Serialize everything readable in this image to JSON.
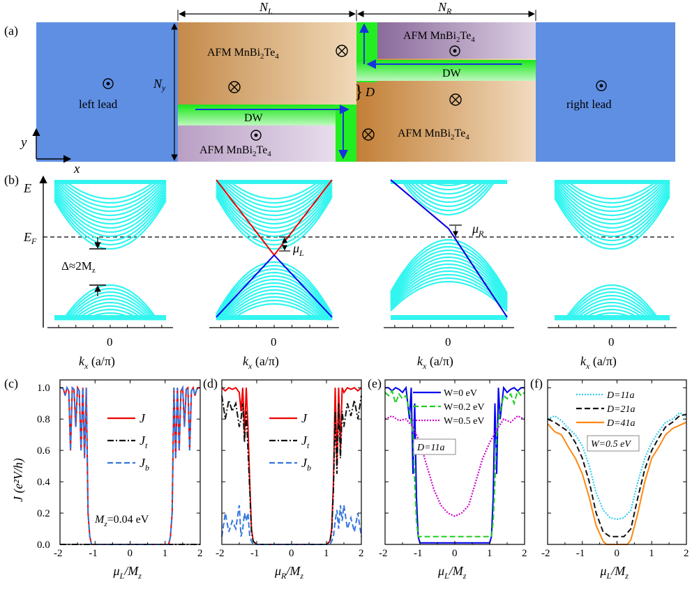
{
  "colors": {
    "lead": "#5f8fe3",
    "mnbite_light": "#f0d9b8",
    "mnbite_dark": "#c98c48",
    "mnbite_purple_dark": "#8a6a9b",
    "mnbite_purple_light": "#ddd0e4",
    "dw": "#22ee22",
    "arrow": "#1533dd",
    "band": "#33f5f0",
    "edge_red": "#ee0000",
    "edge_blue": "#0000ee"
  },
  "panel_a": {
    "label": "(a)",
    "n_l": "N",
    "n_l_sub": "L",
    "n_r": "N",
    "n_r_sub": "R",
    "n_y": "N",
    "n_y_sub": "y",
    "d_label": "D",
    "left_lead": "left lead",
    "right_lead": "right lead",
    "dw": "DW",
    "afm_prefix": "AFM MnBi",
    "afm_sub1": "2",
    "afm_mid": "Te",
    "afm_sub2": "4",
    "axis_x": "x",
    "axis_y": "y"
  },
  "panel_b": {
    "label": "(b)",
    "e_label": "E",
    "ef_label": "E",
    "ef_sub": "F",
    "gap_label": "Δ≈2M",
    "gap_sub": "z",
    "mu_l": "μ",
    "mu_l_sub": "L",
    "mu_r": "μ",
    "mu_r_sub": "R",
    "zero": "0",
    "kx_label": "k",
    "kx_sub": "x",
    "kx_unit": "(a/π)"
  },
  "chart_data": [
    {
      "type": "line",
      "panel": "(c)",
      "xlabel": "μL/Mz",
      "ylabel": "J (e²V/h)",
      "xlim": [
        -2,
        2
      ],
      "ylim": [
        0,
        1.05
      ],
      "xticks": [
        -2,
        -1,
        0,
        1,
        2
      ],
      "yticks": [
        0.0,
        0.2,
        0.4,
        0.6,
        0.8,
        1.0
      ],
      "annotation": "Mz=0.04 eV",
      "series": [
        {
          "name": "J",
          "color": "#ee0000",
          "dash": "solid",
          "x": [
            -2,
            -1.95,
            -1.9,
            -1.85,
            -1.8,
            -1.75,
            -1.7,
            -1.65,
            -1.6,
            -1.55,
            -1.5,
            -1.45,
            -1.4,
            -1.35,
            -1.3,
            -1.25,
            -1.2,
            -1.15,
            -1.1,
            -1.05,
            -1.0,
            0,
            1.0,
            1.05,
            1.1,
            1.15,
            1.2,
            1.25,
            1.3,
            1.35,
            1.4,
            1.45,
            1.5,
            1.55,
            1.6,
            1.65,
            1.7,
            1.75,
            1.8,
            1.85,
            1.9,
            1.95,
            2
          ],
          "y": [
            1.0,
            1.0,
            0.99,
            0.95,
            1.0,
            0.98,
            0.6,
            1.0,
            0.99,
            0.75,
            1.0,
            0.98,
            0.6,
            1.0,
            0.55,
            1.0,
            0.2,
            0.05,
            0.0,
            0.0,
            0.0,
            0.0,
            0.0,
            0.0,
            0.0,
            0.05,
            0.2,
            1.0,
            0.55,
            1.0,
            0.6,
            0.98,
            1.0,
            0.75,
            0.99,
            1.0,
            0.6,
            0.98,
            1.0,
            0.95,
            0.99,
            1.0,
            1.0
          ]
        },
        {
          "name": "Jt",
          "color": "#111111",
          "dash": "dashdot",
          "x": [
            -2,
            2
          ],
          "y": [
            0.0,
            0.0
          ]
        },
        {
          "name": "Jb",
          "color": "#3377dd",
          "dash": "dashed",
          "x": [
            -2,
            -1.95,
            -1.9,
            -1.85,
            -1.8,
            -1.75,
            -1.7,
            -1.65,
            -1.6,
            -1.55,
            -1.5,
            -1.45,
            -1.4,
            -1.35,
            -1.3,
            -1.25,
            -1.2,
            -1.15,
            -1.1,
            -1.05,
            -1.0,
            0,
            1.0,
            1.05,
            1.1,
            1.15,
            1.2,
            1.25,
            1.3,
            1.35,
            1.4,
            1.45,
            1.5,
            1.55,
            1.6,
            1.65,
            1.7,
            1.75,
            1.8,
            1.85,
            1.9,
            1.95,
            2
          ],
          "y": [
            1.0,
            1.0,
            0.99,
            0.95,
            1.0,
            0.98,
            0.6,
            1.0,
            0.99,
            0.75,
            1.0,
            0.98,
            0.6,
            1.0,
            0.55,
            1.0,
            0.2,
            0.05,
            0.0,
            0.0,
            0.0,
            0.0,
            0.0,
            0.0,
            0.0,
            0.05,
            0.2,
            1.0,
            0.55,
            1.0,
            0.6,
            0.98,
            1.0,
            0.75,
            0.99,
            1.0,
            0.6,
            0.98,
            1.0,
            0.95,
            0.99,
            1.0,
            1.0
          ]
        }
      ],
      "legend": [
        "J",
        "Jt",
        "Jb"
      ]
    },
    {
      "type": "line",
      "panel": "(d)",
      "xlabel": "μR/Mz",
      "xlim": [
        -2,
        2
      ],
      "ylim": [
        0,
        1.05
      ],
      "xticks": [
        -2,
        -1,
        0,
        1,
        2
      ],
      "series": [
        {
          "name": "J",
          "color": "#ee0000",
          "dash": "solid",
          "x": [
            -2,
            -1.9,
            -1.8,
            -1.7,
            -1.6,
            -1.5,
            -1.45,
            -1.4,
            -1.35,
            -1.3,
            -1.25,
            -1.2,
            -1.15,
            -1.1,
            -1.0,
            0,
            1.0,
            1.1,
            1.15,
            1.2,
            1.25,
            1.3,
            1.35,
            1.4,
            1.45,
            1.5,
            1.6,
            1.7,
            1.8,
            1.9,
            2
          ],
          "y": [
            1.0,
            0.98,
            1.0,
            0.99,
            1.0,
            0.97,
            0.85,
            1.0,
            0.7,
            1.0,
            0.75,
            0.4,
            0.1,
            0.02,
            0.0,
            0.0,
            0.0,
            0.02,
            0.1,
            0.4,
            1.0,
            0.5,
            1.0,
            0.6,
            1.0,
            0.97,
            1.0,
            0.99,
            1.0,
            0.98,
            1.0
          ]
        },
        {
          "name": "Jt",
          "color": "#111111",
          "dash": "dashdot",
          "x": [
            -2,
            -1.9,
            -1.8,
            -1.7,
            -1.6,
            -1.5,
            -1.45,
            -1.4,
            -1.35,
            -1.3,
            -1.25,
            -1.2,
            -1.15,
            -1.1,
            -1.0,
            0,
            1.0,
            1.1,
            1.15,
            1.2,
            1.25,
            1.3,
            1.35,
            1.4,
            1.45,
            1.5,
            1.6,
            1.7,
            1.8,
            1.9,
            2
          ],
          "y": [
            0.95,
            0.8,
            0.92,
            0.85,
            0.9,
            0.75,
            0.8,
            0.9,
            0.65,
            0.85,
            0.6,
            0.35,
            0.08,
            0.02,
            0.0,
            0.0,
            0.0,
            0.02,
            0.08,
            0.35,
            0.85,
            0.45,
            0.9,
            0.55,
            0.85,
            0.75,
            0.9,
            0.82,
            0.92,
            0.8,
            0.95
          ]
        },
        {
          "name": "Jb",
          "color": "#3377dd",
          "dash": "dashed",
          "x": [
            -2,
            -1.9,
            -1.8,
            -1.7,
            -1.6,
            -1.5,
            -1.45,
            -1.4,
            -1.35,
            -1.3,
            -1.25,
            -1.2,
            -1.15,
            -1.1,
            -1.0,
            0,
            1.0,
            1.1,
            1.15,
            1.2,
            1.25,
            1.3,
            1.35,
            1.4,
            1.45,
            1.5,
            1.6,
            1.7,
            1.8,
            1.9,
            2
          ],
          "y": [
            0.05,
            0.2,
            0.08,
            0.15,
            0.1,
            0.25,
            0.05,
            0.1,
            0.2,
            0.15,
            0.2,
            0.05,
            0.02,
            0.0,
            0.0,
            0.0,
            0.0,
            0.0,
            0.02,
            0.05,
            0.15,
            0.22,
            0.1,
            0.25,
            0.15,
            0.25,
            0.1,
            0.17,
            0.08,
            0.2,
            0.05
          ]
        }
      ],
      "legend": [
        "J",
        "Jt",
        "Jb"
      ]
    },
    {
      "type": "line",
      "panel": "(e)",
      "xlabel": "μL/Mz",
      "xlim": [
        -2,
        2
      ],
      "ylim": [
        0,
        1.05
      ],
      "xticks": [
        -2,
        -1,
        0,
        1,
        2
      ],
      "annotation": "D=11a",
      "series": [
        {
          "name": "W=0 eV",
          "color": "#0000ee",
          "dash": "solid",
          "x": [
            -2,
            -1.9,
            -1.8,
            -1.7,
            -1.6,
            -1.5,
            -1.4,
            -1.3,
            -1.25,
            -1.2,
            -1.15,
            -1.1,
            -1.05,
            -1.0,
            0,
            1.0,
            1.05,
            1.1,
            1.15,
            1.2,
            1.25,
            1.3,
            1.4,
            1.5,
            1.6,
            1.7,
            1.8,
            1.9,
            2
          ],
          "y": [
            1.0,
            1.0,
            0.98,
            1.0,
            0.99,
            0.97,
            1.0,
            0.8,
            1.0,
            0.45,
            0.9,
            0.3,
            0.05,
            0.01,
            0.01,
            0.01,
            0.05,
            0.3,
            0.9,
            0.45,
            1.0,
            0.8,
            1.0,
            0.97,
            0.99,
            1.0,
            0.98,
            1.0,
            1.0
          ]
        },
        {
          "name": "W=0.2 eV",
          "color": "#22cc22",
          "dash": "dashed",
          "x": [
            -2,
            -1.9,
            -1.8,
            -1.7,
            -1.6,
            -1.5,
            -1.4,
            -1.3,
            -1.2,
            -1.15,
            -1.1,
            -1.05,
            -1.0,
            0,
            1.0,
            1.05,
            1.1,
            1.15,
            1.2,
            1.3,
            1.4,
            1.5,
            1.6,
            1.7,
            1.8,
            1.9,
            2
          ],
          "y": [
            0.97,
            0.95,
            0.98,
            0.9,
            0.96,
            0.93,
            0.95,
            0.85,
            0.7,
            0.4,
            0.15,
            0.05,
            0.05,
            0.05,
            0.05,
            0.05,
            0.15,
            0.4,
            0.7,
            0.85,
            0.95,
            0.93,
            0.96,
            0.9,
            0.98,
            0.95,
            0.97
          ]
        },
        {
          "name": "W=0.5 eV",
          "color": "#cc00cc",
          "dash": "dotted",
          "x": [
            -2,
            -1.8,
            -1.6,
            -1.4,
            -1.2,
            -1.0,
            -0.8,
            -0.6,
            -0.4,
            -0.2,
            0,
            0.2,
            0.4,
            0.6,
            0.8,
            1.0,
            1.2,
            1.4,
            1.6,
            1.8,
            2
          ],
          "y": [
            0.8,
            0.82,
            0.79,
            0.8,
            0.75,
            0.65,
            0.5,
            0.35,
            0.25,
            0.2,
            0.18,
            0.2,
            0.25,
            0.4,
            0.55,
            0.65,
            0.73,
            0.8,
            0.78,
            0.82,
            0.8
          ]
        }
      ],
      "legend": [
        "W=0 eV",
        "W=0.2 eV",
        "W=0.5 eV"
      ]
    },
    {
      "type": "line",
      "panel": "(f)",
      "xlabel": "μL/Mz",
      "xlim": [
        -2,
        2
      ],
      "ylim": [
        0,
        1.05
      ],
      "xticks": [
        -2,
        -1,
        0,
        1,
        2
      ],
      "annotation": "W=0.5 eV",
      "series": [
        {
          "name": "D=11a",
          "color": "#33ccee",
          "dash": "dotted",
          "x": [
            -2,
            -1.8,
            -1.6,
            -1.4,
            -1.2,
            -1.0,
            -0.8,
            -0.6,
            -0.4,
            -0.2,
            0,
            0.2,
            0.4,
            0.6,
            0.8,
            1.0,
            1.2,
            1.4,
            1.6,
            1.8,
            2
          ],
          "y": [
            0.8,
            0.82,
            0.79,
            0.74,
            0.7,
            0.63,
            0.5,
            0.33,
            0.22,
            0.17,
            0.16,
            0.17,
            0.22,
            0.4,
            0.55,
            0.65,
            0.72,
            0.78,
            0.8,
            0.84,
            0.82
          ]
        },
        {
          "name": "D=21a",
          "color": "#111111",
          "dash": "dashed",
          "x": [
            -2,
            -1.8,
            -1.6,
            -1.4,
            -1.2,
            -1.0,
            -0.8,
            -0.6,
            -0.4,
            -0.2,
            0,
            0.2,
            0.4,
            0.6,
            0.8,
            1.0,
            1.2,
            1.4,
            1.6,
            1.8,
            2
          ],
          "y": [
            0.8,
            0.78,
            0.75,
            0.72,
            0.65,
            0.55,
            0.4,
            0.2,
            0.08,
            0.05,
            0.05,
            0.05,
            0.1,
            0.3,
            0.48,
            0.6,
            0.68,
            0.75,
            0.78,
            0.82,
            0.83
          ]
        },
        {
          "name": "D=41a",
          "color": "#ff8811",
          "dash": "solid",
          "x": [
            -2,
            -1.8,
            -1.6,
            -1.4,
            -1.2,
            -1.0,
            -0.8,
            -0.6,
            -0.4,
            -0.3,
            -0.2,
            0,
            0.2,
            0.3,
            0.4,
            0.6,
            0.8,
            1.0,
            1.2,
            1.4,
            1.6,
            1.8,
            2
          ],
          "y": [
            0.77,
            0.72,
            0.7,
            0.62,
            0.55,
            0.45,
            0.3,
            0.12,
            0.02,
            0.0,
            0.0,
            0.0,
            0.0,
            0.0,
            0.03,
            0.2,
            0.4,
            0.55,
            0.62,
            0.7,
            0.74,
            0.76,
            0.78
          ]
        }
      ],
      "legend": [
        "D=11a",
        "D=21a",
        "D=41a"
      ]
    }
  ],
  "panel_labels": [
    "(c)",
    "(d)",
    "(e)",
    "(f)"
  ],
  "y_axis_title": "J (e²V/h)",
  "ytick_labels": [
    "0.0",
    "0.2",
    "0.4",
    "0.6",
    "0.8",
    "1.0"
  ],
  "xtick_labels": [
    "-2",
    "-1",
    "0",
    "1",
    "2"
  ],
  "legend_c": [
    "J",
    "J",
    "t",
    "J",
    "b"
  ],
  "mz_note": "M",
  "mz_note_sub": "z",
  "mz_note_val": "=0.04 eV",
  "e_annotation": "D=11a",
  "f_annotation": "W=0.5 eV",
  "e_legend": [
    "W=0 eV",
    "W=0.2 eV",
    "W=0.5 eV"
  ],
  "f_legend": [
    "D=11a",
    "D=21a",
    "D=41a"
  ],
  "x_labels_cdef": [
    "μL/Mz",
    "μR/Mz",
    "μL/Mz",
    "μL/Mz"
  ]
}
